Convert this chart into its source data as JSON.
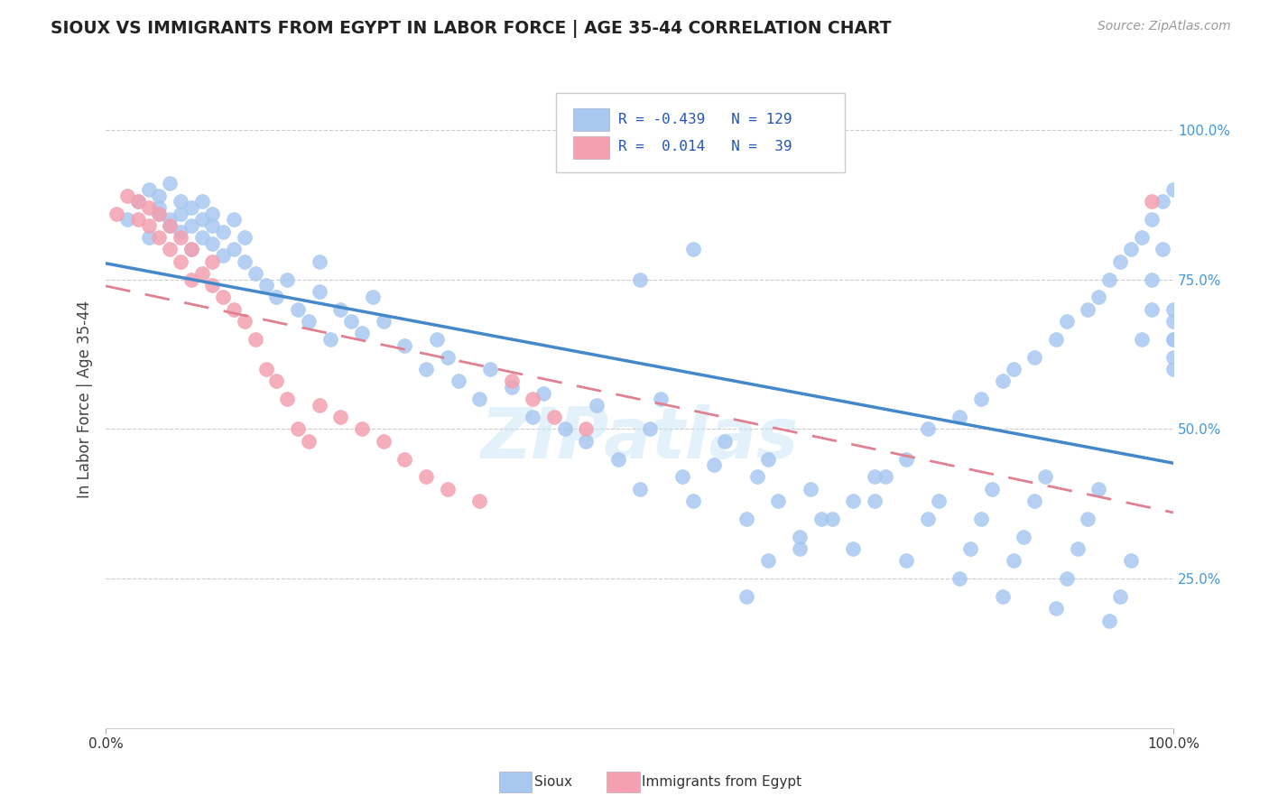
{
  "title": "SIOUX VS IMMIGRANTS FROM EGYPT IN LABOR FORCE | AGE 35-44 CORRELATION CHART",
  "source": "Source: ZipAtlas.com",
  "ylabel": "In Labor Force | Age 35-44",
  "xmin": 0.0,
  "xmax": 1.0,
  "ymin": 0.0,
  "ymax": 1.1,
  "x_tick_labels": [
    "0.0%",
    "100.0%"
  ],
  "y_tick_labels": [
    "25.0%",
    "50.0%",
    "75.0%",
    "100.0%"
  ],
  "y_tick_positions": [
    0.25,
    0.5,
    0.75,
    1.0
  ],
  "legend_r_sioux": "-0.439",
  "legend_n_sioux": "129",
  "legend_r_egypt": "0.014",
  "legend_n_egypt": "39",
  "sioux_color": "#a8c8f0",
  "egypt_color": "#f4a0b0",
  "sioux_line_color": "#4488cc",
  "egypt_line_color": "#e08090",
  "watermark": "ZIPatlas",
  "bg_color": "#ffffff",
  "sioux_x": [
    0.02,
    0.03,
    0.04,
    0.04,
    0.05,
    0.05,
    0.05,
    0.06,
    0.06,
    0.06,
    0.07,
    0.07,
    0.07,
    0.08,
    0.08,
    0.08,
    0.09,
    0.09,
    0.09,
    0.1,
    0.1,
    0.1,
    0.11,
    0.11,
    0.12,
    0.12,
    0.13,
    0.13,
    0.14,
    0.15,
    0.16,
    0.17,
    0.18,
    0.19,
    0.2,
    0.2,
    0.21,
    0.22,
    0.23,
    0.24,
    0.25,
    0.26,
    0.28,
    0.3,
    0.31,
    0.32,
    0.33,
    0.35,
    0.36,
    0.38,
    0.4,
    0.41,
    0.43,
    0.45,
    0.46,
    0.48,
    0.5,
    0.51,
    0.52,
    0.54,
    0.55,
    0.57,
    0.58,
    0.6,
    0.61,
    0.62,
    0.63,
    0.65,
    0.66,
    0.68,
    0.7,
    0.72,
    0.73,
    0.75,
    0.77,
    0.78,
    0.8,
    0.81,
    0.82,
    0.83,
    0.84,
    0.85,
    0.86,
    0.87,
    0.88,
    0.89,
    0.9,
    0.91,
    0.92,
    0.93,
    0.94,
    0.95,
    0.96,
    0.97,
    0.98,
    0.98,
    0.99,
    1.0,
    1.0,
    1.0,
    0.5,
    0.55,
    0.6,
    0.62,
    0.65,
    0.67,
    0.7,
    0.72,
    0.75,
    0.77,
    0.8,
    0.82,
    0.84,
    0.85,
    0.87,
    0.89,
    0.9,
    0.92,
    0.93,
    0.94,
    0.95,
    0.96,
    0.97,
    0.98,
    0.99,
    1.0,
    1.0,
    1.0,
    1.0
  ],
  "sioux_y": [
    0.85,
    0.88,
    0.82,
    0.9,
    0.86,
    0.87,
    0.89,
    0.84,
    0.85,
    0.91,
    0.83,
    0.86,
    0.88,
    0.8,
    0.84,
    0.87,
    0.82,
    0.85,
    0.88,
    0.81,
    0.84,
    0.86,
    0.79,
    0.83,
    0.8,
    0.85,
    0.78,
    0.82,
    0.76,
    0.74,
    0.72,
    0.75,
    0.7,
    0.68,
    0.73,
    0.78,
    0.65,
    0.7,
    0.68,
    0.66,
    0.72,
    0.68,
    0.64,
    0.6,
    0.65,
    0.62,
    0.58,
    0.55,
    0.6,
    0.57,
    0.52,
    0.56,
    0.5,
    0.48,
    0.54,
    0.45,
    0.4,
    0.5,
    0.55,
    0.42,
    0.38,
    0.44,
    0.48,
    0.35,
    0.42,
    0.45,
    0.38,
    0.32,
    0.4,
    0.35,
    0.3,
    0.38,
    0.42,
    0.28,
    0.35,
    0.38,
    0.25,
    0.3,
    0.35,
    0.4,
    0.22,
    0.28,
    0.32,
    0.38,
    0.42,
    0.2,
    0.25,
    0.3,
    0.35,
    0.4,
    0.18,
    0.22,
    0.28,
    0.65,
    0.7,
    0.75,
    0.8,
    0.6,
    0.65,
    0.7,
    0.75,
    0.8,
    0.22,
    0.28,
    0.3,
    0.35,
    0.38,
    0.42,
    0.45,
    0.5,
    0.52,
    0.55,
    0.58,
    0.6,
    0.62,
    0.65,
    0.68,
    0.7,
    0.72,
    0.75,
    0.78,
    0.8,
    0.82,
    0.85,
    0.88,
    0.9,
    0.62,
    0.65,
    0.68
  ],
  "egypt_x": [
    0.01,
    0.02,
    0.03,
    0.03,
    0.04,
    0.04,
    0.05,
    0.05,
    0.06,
    0.06,
    0.07,
    0.07,
    0.08,
    0.08,
    0.09,
    0.1,
    0.1,
    0.11,
    0.12,
    0.13,
    0.14,
    0.15,
    0.16,
    0.17,
    0.18,
    0.19,
    0.2,
    0.22,
    0.24,
    0.26,
    0.28,
    0.3,
    0.32,
    0.35,
    0.38,
    0.4,
    0.42,
    0.45,
    0.98
  ],
  "egypt_y": [
    0.86,
    0.89,
    0.85,
    0.88,
    0.84,
    0.87,
    0.82,
    0.86,
    0.8,
    0.84,
    0.78,
    0.82,
    0.75,
    0.8,
    0.76,
    0.74,
    0.78,
    0.72,
    0.7,
    0.68,
    0.65,
    0.6,
    0.58,
    0.55,
    0.5,
    0.48,
    0.54,
    0.52,
    0.5,
    0.48,
    0.45,
    0.42,
    0.4,
    0.38,
    0.58,
    0.55,
    0.52,
    0.5,
    0.88
  ]
}
